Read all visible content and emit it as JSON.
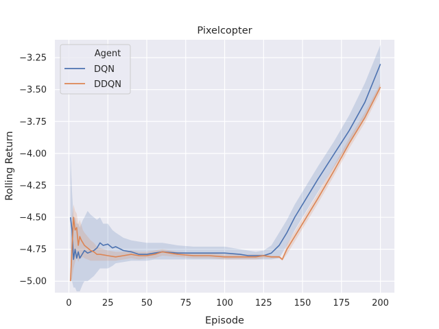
{
  "chart_data": {
    "type": "line",
    "title": "Pixelcopter",
    "xlabel": "Episode",
    "ylabel": "Rolling Return",
    "xlim": [
      -9,
      209
    ],
    "ylim": [
      -5.09,
      -3.11
    ],
    "xticks": [
      0,
      25,
      50,
      75,
      100,
      125,
      150,
      175,
      200
    ],
    "xtick_labels": [
      "0",
      "25",
      "50",
      "75",
      "100",
      "125",
      "150",
      "175",
      "200"
    ],
    "yticks": [
      -5.0,
      -4.75,
      -4.5,
      -4.25,
      -4.0,
      -3.75,
      -3.5,
      -3.25
    ],
    "ytick_labels": [
      "−5.00",
      "−4.75",
      "−4.50",
      "−4.25",
      "−4.00",
      "−3.75",
      "−3.50",
      "−3.25"
    ],
    "grid": true,
    "legend_title": "Agent",
    "legend_position": "top-left",
    "series": [
      {
        "name": "DQN",
        "color": "#4c72b0",
        "x": [
          1,
          2,
          3,
          4,
          5,
          6,
          7,
          8,
          9,
          10,
          12,
          14,
          16,
          18,
          20,
          22,
          25,
          28,
          30,
          35,
          40,
          45,
          50,
          55,
          60,
          70,
          80,
          90,
          100,
          110,
          115,
          120,
          125,
          130,
          135,
          140,
          145,
          150,
          160,
          170,
          180,
          190,
          200
        ],
        "y": [
          -4.5,
          -4.6,
          -4.83,
          -4.75,
          -4.82,
          -4.77,
          -4.82,
          -4.8,
          -4.78,
          -4.76,
          -4.78,
          -4.77,
          -4.76,
          -4.74,
          -4.7,
          -4.72,
          -4.71,
          -4.74,
          -4.73,
          -4.76,
          -4.77,
          -4.79,
          -4.79,
          -4.78,
          -4.77,
          -4.78,
          -4.78,
          -4.78,
          -4.78,
          -4.79,
          -4.8,
          -4.8,
          -4.8,
          -4.78,
          -4.72,
          -4.62,
          -4.5,
          -4.4,
          -4.2,
          -4.01,
          -3.82,
          -3.6,
          -3.3
        ],
        "band_upper": [
          -4.0,
          -4.3,
          -4.5,
          -4.5,
          -4.55,
          -4.55,
          -4.58,
          -4.55,
          -4.52,
          -4.5,
          -4.45,
          -4.48,
          -4.5,
          -4.52,
          -4.5,
          -4.55,
          -4.55,
          -4.6,
          -4.62,
          -4.66,
          -4.68,
          -4.69,
          -4.7,
          -4.7,
          -4.7,
          -4.72,
          -4.73,
          -4.73,
          -4.73,
          -4.75,
          -4.76,
          -4.77,
          -4.76,
          -4.72,
          -4.62,
          -4.52,
          -4.4,
          -4.3,
          -4.1,
          -3.91,
          -3.7,
          -3.45,
          -3.15
        ],
        "band_lower": [
          -5.0,
          -5.0,
          -5.05,
          -5.05,
          -5.08,
          -5.08,
          -5.08,
          -5.05,
          -5.02,
          -5.0,
          -5.0,
          -4.98,
          -4.96,
          -4.93,
          -4.9,
          -4.9,
          -4.9,
          -4.88,
          -4.86,
          -4.85,
          -4.84,
          -4.84,
          -4.84,
          -4.83,
          -4.83,
          -4.83,
          -4.83,
          -4.83,
          -4.83,
          -4.83,
          -4.83,
          -4.83,
          -4.83,
          -4.83,
          -4.82,
          -4.72,
          -4.6,
          -4.5,
          -4.3,
          -4.11,
          -3.92,
          -3.72,
          -3.48
        ]
      },
      {
        "name": "DDQN",
        "color": "#dd8452",
        "x": [
          1,
          2,
          3,
          4,
          5,
          6,
          7,
          8,
          9,
          10,
          12,
          14,
          16,
          18,
          20,
          25,
          30,
          35,
          40,
          45,
          50,
          55,
          60,
          70,
          80,
          90,
          100,
          110,
          120,
          125,
          130,
          135,
          137,
          140,
          145,
          150,
          160,
          170,
          180,
          190,
          200
        ],
        "y": [
          -5.0,
          -4.75,
          -4.5,
          -4.6,
          -4.58,
          -4.72,
          -4.65,
          -4.68,
          -4.7,
          -4.72,
          -4.74,
          -4.76,
          -4.77,
          -4.79,
          -4.79,
          -4.8,
          -4.81,
          -4.8,
          -4.79,
          -4.8,
          -4.8,
          -4.79,
          -4.77,
          -4.79,
          -4.8,
          -4.8,
          -4.81,
          -4.81,
          -4.81,
          -4.8,
          -4.81,
          -4.81,
          -4.83,
          -4.75,
          -4.65,
          -4.55,
          -4.35,
          -4.14,
          -3.92,
          -3.72,
          -3.48
        ],
        "band_upper": [
          -5.0,
          -4.5,
          -4.4,
          -4.45,
          -4.47,
          -4.55,
          -4.52,
          -4.56,
          -4.6,
          -4.62,
          -4.65,
          -4.68,
          -4.7,
          -4.73,
          -4.74,
          -4.76,
          -4.77,
          -4.77,
          -4.76,
          -4.77,
          -4.77,
          -4.76,
          -4.75,
          -4.77,
          -4.78,
          -4.78,
          -4.79,
          -4.79,
          -4.79,
          -4.79,
          -4.8,
          -4.8,
          -4.82,
          -4.71,
          -4.61,
          -4.51,
          -4.31,
          -4.1,
          -3.88,
          -3.68,
          -3.45
        ],
        "band_lower": [
          -5.0,
          -4.98,
          -4.9,
          -4.85,
          -4.8,
          -4.85,
          -4.82,
          -4.82,
          -4.81,
          -4.82,
          -4.83,
          -4.84,
          -4.84,
          -4.84,
          -4.84,
          -4.84,
          -4.84,
          -4.83,
          -4.82,
          -4.83,
          -4.82,
          -4.82,
          -4.8,
          -4.81,
          -4.82,
          -4.82,
          -4.83,
          -4.83,
          -4.83,
          -4.82,
          -4.82,
          -4.82,
          -4.84,
          -4.79,
          -4.69,
          -4.59,
          -4.39,
          -4.18,
          -3.96,
          -3.76,
          -3.52
        ]
      }
    ]
  }
}
